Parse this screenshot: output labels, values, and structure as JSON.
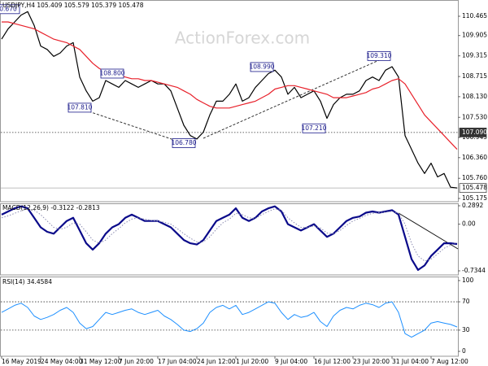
{
  "chart_data": [
    {
      "type": "line",
      "title": "USDJPY,H4 105.409 105.579 105.379 105.478",
      "watermark": "ActionForex.com",
      "categories": [
        "16 May 2019",
        null,
        null,
        null,
        null,
        null,
        "24 May 04:00",
        null,
        null,
        null,
        null,
        null,
        "31 May 12:00",
        null,
        null,
        null,
        null,
        null,
        "7 Jun 20:00",
        null,
        null,
        null,
        null,
        null,
        "17 Jun 04:00",
        null,
        null,
        null,
        null,
        null,
        "24 Jun 12:00",
        null,
        null,
        null,
        null,
        null,
        "1 Jul 20:00",
        null,
        null,
        null,
        null,
        null,
        "9 Jul 04:00",
        null,
        null,
        null,
        null,
        null,
        "16 Jul 12:00",
        null,
        null,
        null,
        null,
        null,
        "23 Jul 20:00",
        null,
        null,
        null,
        null,
        null,
        "31 Jul 04:00",
        null,
        null,
        null,
        null,
        null,
        "7 Aug 12:00",
        null,
        null,
        null,
        null
      ],
      "series": [
        {
          "color": "#000000",
          "width": 1.2,
          "values": [
            109.8,
            110.1,
            110.3,
            110.5,
            110.6,
            110.2,
            109.6,
            109.5,
            109.3,
            109.4,
            109.6,
            109.7,
            108.7,
            108.3,
            108.0,
            108.1,
            108.6,
            108.5,
            108.4,
            108.6,
            108.5,
            108.4,
            108.5,
            108.6,
            108.5,
            108.5,
            108.3,
            107.8,
            107.3,
            107.0,
            106.9,
            107.1,
            107.6,
            108.0,
            108.0,
            108.2,
            108.5,
            108.0,
            108.1,
            108.4,
            108.6,
            108.8,
            108.9,
            108.7,
            108.2,
            108.4,
            108.1,
            108.2,
            108.3,
            108.0,
            107.5,
            107.9,
            108.1,
            108.2,
            108.2,
            108.3,
            108.6,
            108.7,
            108.6,
            108.9,
            109.0,
            108.7,
            107.0,
            106.6,
            106.2,
            105.9,
            106.2,
            105.8,
            105.9,
            105.5,
            105.478
          ]
        },
        {
          "color": "#e8202a",
          "width": 1.2,
          "values": [
            110.3,
            110.3,
            110.25,
            110.2,
            110.15,
            110.1,
            110.0,
            109.9,
            109.8,
            109.75,
            109.7,
            109.6,
            109.5,
            109.3,
            109.1,
            108.95,
            108.85,
            108.8,
            108.75,
            108.7,
            108.65,
            108.65,
            108.6,
            108.6,
            108.55,
            108.5,
            108.45,
            108.4,
            108.3,
            108.2,
            108.05,
            107.95,
            107.85,
            107.8,
            107.8,
            107.8,
            107.85,
            107.9,
            107.95,
            108.0,
            108.1,
            108.2,
            108.35,
            108.4,
            108.45,
            108.45,
            108.4,
            108.35,
            108.3,
            108.25,
            108.2,
            108.1,
            108.1,
            108.1,
            108.15,
            108.2,
            108.25,
            108.35,
            108.4,
            108.5,
            108.6,
            108.65,
            108.5,
            108.2,
            107.9,
            107.6,
            107.4,
            107.2,
            107.0,
            106.8,
            106.6
          ]
        }
      ],
      "ylim": [
        105.08,
        110.937
      ],
      "yticks": [
        110.465,
        109.905,
        109.315,
        108.715,
        {
          "value": 108.13,
          "label": "108.130"
        },
        {
          "value": 107.53,
          "label": "107.530"
        },
        106.945,
        {
          "value": 106.36,
          "label": "106.360"
        },
        {
          "value": 105.76,
          "label": "105.760"
        },
        105.175
      ],
      "levels": [
        {
          "value": 107.09,
          "label": "107.090",
          "style": "dotted"
        },
        {
          "value": 105.478,
          "style": "solid"
        }
      ],
      "annotations": [
        {
          "index": 1,
          "value": 110.67,
          "label": "0.670"
        },
        {
          "index": 17,
          "value": 108.8,
          "label": "108.800"
        },
        {
          "index": 12,
          "value": 107.81,
          "label": "107.810"
        },
        {
          "index": 40,
          "value": 108.99,
          "label": "108.990"
        },
        {
          "index": 58,
          "value": 109.31,
          "label": "109.310"
        },
        {
          "index": 28,
          "value": 106.78,
          "label": "106.780"
        },
        {
          "index": 48,
          "value": 107.21,
          "label": "107.210"
        }
      ]
    },
    {
      "type": "line",
      "title": "MACD(12,26,9) -0.3122 -0.2813",
      "series": [
        {
          "color": "#0a0a8a",
          "width": 2.2,
          "values": [
            0.15,
            0.2,
            0.25,
            0.28,
            0.25,
            0.1,
            -0.05,
            -0.12,
            -0.15,
            -0.05,
            0.05,
            0.1,
            -0.1,
            -0.3,
            -0.4,
            -0.3,
            -0.15,
            -0.05,
            0.0,
            0.1,
            0.15,
            0.1,
            0.05,
            0.05,
            0.05,
            0.0,
            -0.05,
            -0.15,
            -0.25,
            -0.3,
            -0.32,
            -0.25,
            -0.1,
            0.05,
            0.1,
            0.15,
            0.25,
            0.1,
            0.05,
            0.1,
            0.2,
            0.25,
            0.28,
            0.2,
            0.0,
            -0.05,
            -0.1,
            -0.05,
            0.0,
            -0.1,
            -0.2,
            -0.15,
            -0.05,
            0.05,
            0.1,
            0.12,
            0.18,
            0.2,
            0.18,
            0.2,
            0.22,
            0.15,
            -0.2,
            -0.55,
            -0.72,
            -0.65,
            -0.5,
            -0.4,
            -0.3,
            -0.3,
            -0.3122
          ]
        },
        {
          "color": "#8a8ab0",
          "width": 1,
          "style": "dotted",
          "values": [
            0.1,
            0.13,
            0.17,
            0.21,
            0.24,
            0.22,
            0.15,
            0.05,
            -0.05,
            -0.08,
            -0.05,
            0.02,
            0.0,
            -0.12,
            -0.25,
            -0.3,
            -0.25,
            -0.15,
            -0.07,
            0.02,
            0.08,
            0.1,
            0.08,
            0.06,
            0.05,
            0.03,
            0.0,
            -0.07,
            -0.15,
            -0.22,
            -0.28,
            -0.28,
            -0.2,
            -0.08,
            0.02,
            0.08,
            0.17,
            0.15,
            0.1,
            0.09,
            0.15,
            0.2,
            0.24,
            0.22,
            0.1,
            0.02,
            -0.05,
            -0.05,
            -0.03,
            -0.06,
            -0.14,
            -0.15,
            -0.1,
            -0.02,
            0.05,
            0.09,
            0.14,
            0.17,
            0.18,
            0.19,
            0.2,
            0.17,
            0.0,
            -0.3,
            -0.5,
            -0.58,
            -0.55,
            -0.47,
            -0.38,
            -0.33,
            -0.2813
          ]
        }
      ],
      "ylim": [
        -0.7983,
        0.3276
      ],
      "yticks": [
        0.2892,
        {
          "value": 0,
          "label": "0.00"
        },
        -0.7344
      ]
    },
    {
      "type": "line",
      "title": "RSI(14) 34.4584",
      "series": [
        {
          "color": "#1e90ff",
          "width": 1,
          "values": [
            55,
            60,
            65,
            68,
            62,
            50,
            45,
            48,
            52,
            58,
            62,
            55,
            40,
            32,
            35,
            45,
            55,
            52,
            55,
            58,
            60,
            55,
            52,
            55,
            58,
            50,
            45,
            38,
            30,
            28,
            32,
            40,
            55,
            62,
            65,
            60,
            65,
            52,
            55,
            60,
            65,
            70,
            68,
            55,
            45,
            52,
            48,
            50,
            55,
            42,
            35,
            50,
            58,
            62,
            60,
            65,
            68,
            66,
            62,
            68,
            70,
            55,
            25,
            20,
            25,
            30,
            40,
            42,
            40,
            38,
            34.4584
          ]
        }
      ],
      "ylim": [
        -6.9,
        105.7
      ],
      "yticks": [
        100,
        70,
        30,
        0
      ],
      "levels": [
        {
          "value": 70,
          "style": "dotted"
        },
        {
          "value": 30,
          "style": "dotted"
        }
      ]
    }
  ]
}
